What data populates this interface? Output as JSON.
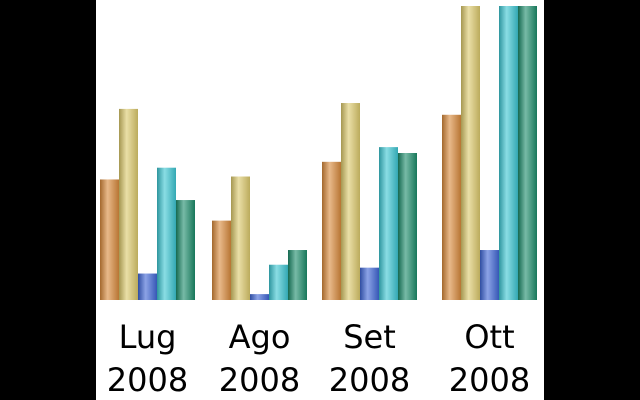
{
  "chart_data": {
    "type": "bar",
    "title": "",
    "xlabel": "",
    "ylabel": "",
    "categories": [
      {
        "month": "Lug",
        "year": "2008"
      },
      {
        "month": "Ago",
        "year": "2008"
      },
      {
        "month": "Set",
        "year": "2008"
      },
      {
        "month": "Ott",
        "year": "2008"
      }
    ],
    "series": [
      {
        "color": "#d98a3c",
        "values": [
          41,
          27,
          47,
          63
        ]
      },
      {
        "color": "#dcc96c",
        "values": [
          65,
          42,
          67,
          100
        ]
      },
      {
        "color": "#3f66d6",
        "values": [
          9,
          2,
          11,
          17
        ]
      },
      {
        "color": "#3cc6d2",
        "values": [
          45,
          12,
          52,
          100
        ]
      },
      {
        "color": "#1c8c6a",
        "values": [
          34,
          17,
          50,
          100
        ]
      }
    ],
    "ylim": [
      0,
      100
    ],
    "grid": false,
    "legend": "none"
  }
}
